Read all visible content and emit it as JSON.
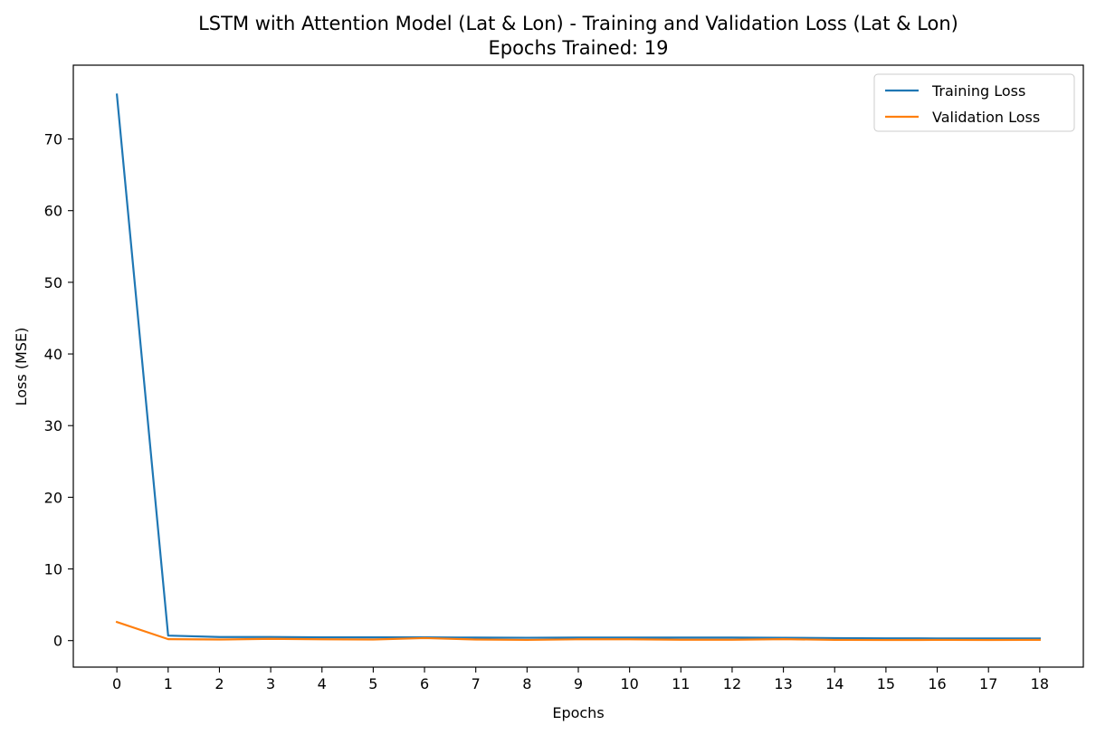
{
  "chart_data": {
    "type": "line",
    "title": "LSTM with Attention Model (Lat & Lon) - Training and Validation Loss (Lat & Lon)",
    "subtitle": "Epochs Trained: 19",
    "xlabel": "Epochs",
    "ylabel": "Loss (MSE)",
    "xlim": [
      -0.85,
      18.85
    ],
    "ylim": [
      -3.7,
      80.3
    ],
    "xticks": [
      0,
      1,
      2,
      3,
      4,
      5,
      6,
      7,
      8,
      9,
      10,
      11,
      12,
      13,
      14,
      15,
      16,
      17,
      18
    ],
    "yticks": [
      0,
      10,
      20,
      30,
      40,
      50,
      60,
      70
    ],
    "grid": false,
    "legend_position": "top-right",
    "x": [
      0,
      1,
      2,
      3,
      4,
      5,
      6,
      7,
      8,
      9,
      10,
      11,
      12,
      13,
      14,
      15,
      16,
      17,
      18
    ],
    "series": [
      {
        "name": "Training Loss",
        "color": "#1f77b4",
        "values": [
          76.2,
          0.7,
          0.5,
          0.5,
          0.45,
          0.45,
          0.45,
          0.42,
          0.4,
          0.42,
          0.42,
          0.42,
          0.42,
          0.4,
          0.35,
          0.32,
          0.3,
          0.3,
          0.3
        ]
      },
      {
        "name": "Validation Loss",
        "color": "#ff7f0e",
        "values": [
          2.6,
          0.2,
          0.15,
          0.25,
          0.18,
          0.15,
          0.35,
          0.15,
          0.1,
          0.18,
          0.18,
          0.12,
          0.12,
          0.2,
          0.1,
          0.08,
          0.1,
          0.08,
          0.1
        ]
      }
    ]
  }
}
